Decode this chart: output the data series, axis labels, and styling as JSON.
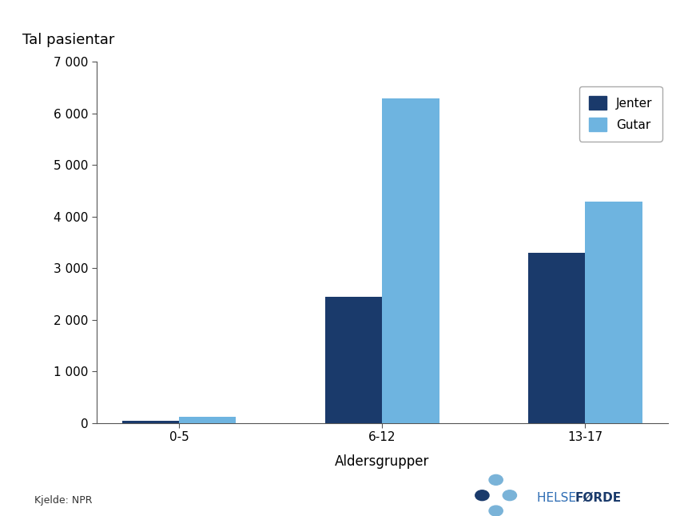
{
  "categories": [
    "0-5",
    "6-12",
    "13-17"
  ],
  "jenter_values": [
    50,
    2450,
    3300
  ],
  "gutar_values": [
    120,
    6300,
    4300
  ],
  "jenter_color": "#1a3a6b",
  "gutar_color": "#6eb4e0",
  "ylabel": "Tal pasientar",
  "xlabel": "Aldersgrupper",
  "yticks": [
    0,
    1000,
    2000,
    3000,
    4000,
    5000,
    6000,
    7000
  ],
  "ytick_labels": [
    "0",
    "1 000",
    "2 000",
    "3 000",
    "4 000",
    "5 000",
    "6 000",
    "7 000"
  ],
  "ylim": [
    0,
    7000
  ],
  "legend_labels": [
    "Jenter",
    "Gutar"
  ],
  "source_text": "Kjelde: NPR",
  "bar_width": 0.28,
  "background_color": "#ffffff",
  "ylabel_fontsize": 13,
  "axis_label_fontsize": 12,
  "tick_fontsize": 11,
  "legend_fontsize": 11,
  "helse_text": "HELSE ",
  "forde_text": "FØRDE",
  "helse_color": "#2e6db4",
  "forde_color": "#1a3a6b",
  "dot_dark": "#1a3a6b",
  "dot_light": "#7ab3d8"
}
